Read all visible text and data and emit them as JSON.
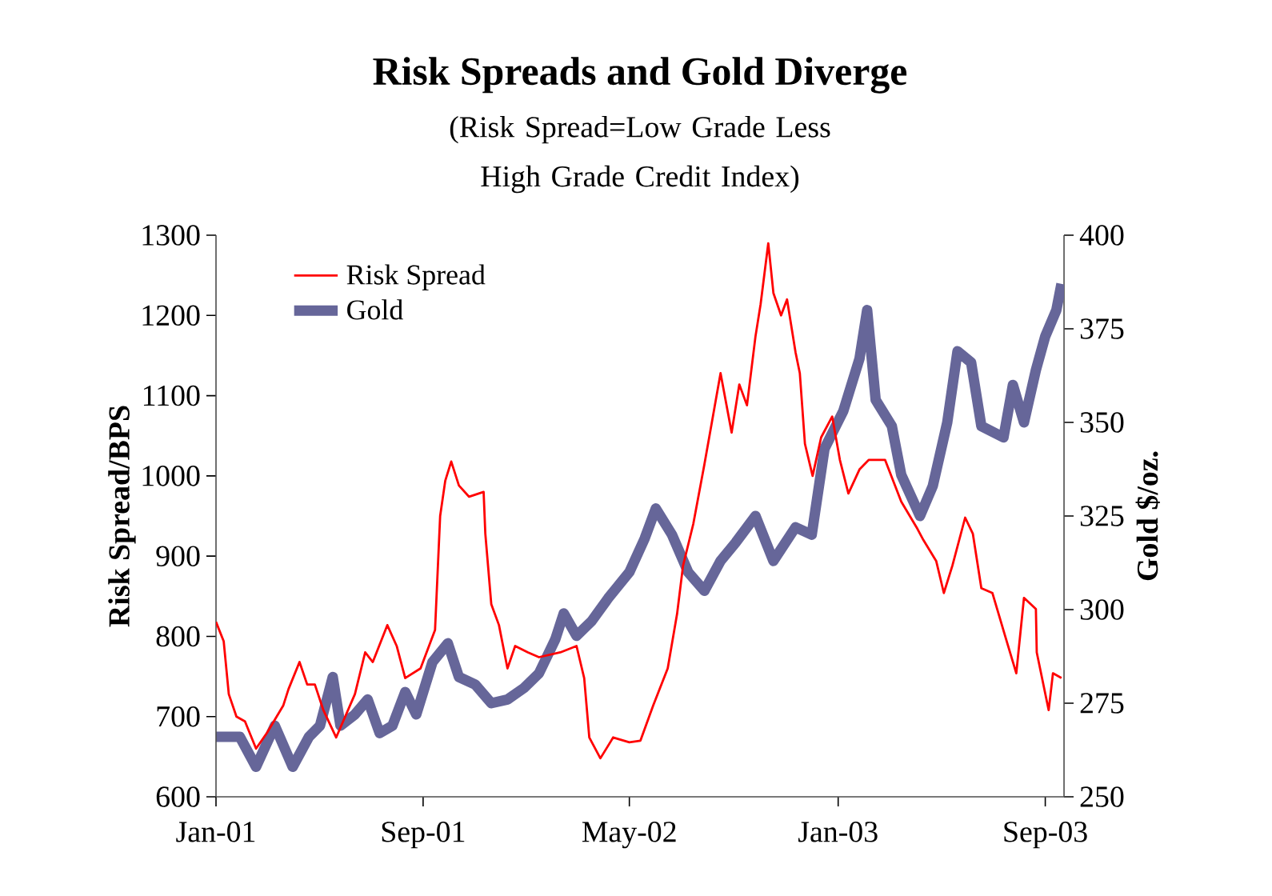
{
  "chart_data": {
    "type": "line",
    "title": "Risk Spreads and Gold Diverge",
    "subtitle": "(Risk Spread=Low Grade Less High Grade Credit Index)",
    "ylabel": "Risk Spread/BPS",
    "y2label": "Gold $/oz.",
    "xlim": [
      "2001-01-01",
      "2003-09-23"
    ],
    "xticks": [
      {
        "value": "2001-01-01",
        "label": "Jan-01"
      },
      {
        "value": "2001-09-01",
        "label": "Sep-01"
      },
      {
        "value": "2002-05-01",
        "label": "May-02"
      },
      {
        "value": "2003-01-01",
        "label": "Jan-03"
      },
      {
        "value": "2003-09-01",
        "label": "Sep-03"
      }
    ],
    "ylim": [
      600,
      1300
    ],
    "yticks": [
      600,
      700,
      800,
      900,
      1000,
      1100,
      1200,
      1300
    ],
    "y2lim": [
      250,
      400
    ],
    "y2ticks": [
      250,
      275,
      300,
      325,
      350,
      375,
      400
    ],
    "legend": "top left",
    "grid": false,
    "marker": "none",
    "line_style": "solid",
    "series": [
      {
        "name": "Risk Spread",
        "color": "#ff0000",
        "x": [
          "2001-01-01",
          "2001-01-10",
          "2001-01-16",
          "2001-01-25",
          "2001-02-04",
          "2001-02-17",
          "2001-03-02",
          "2001-03-21",
          "2001-03-27",
          "2001-04-09",
          "2001-04-18",
          "2001-04-27",
          "2001-05-07",
          "2001-05-22",
          "2001-06-13",
          "2001-06-25",
          "2001-07-04",
          "2001-07-21",
          "2001-08-01",
          "2001-08-11",
          "2001-08-29",
          "2001-09-15",
          "2001-09-21",
          "2001-09-27",
          "2001-10-04",
          "2001-10-13",
          "2001-10-25",
          "2001-11-11",
          "2001-11-13",
          "2001-11-20",
          "2001-11-29",
          "2001-12-09",
          "2001-12-18",
          "2002-01-02",
          "2002-01-15",
          "2002-02-09",
          "2002-02-28",
          "2002-03-09",
          "2002-03-15",
          "2002-03-28",
          "2002-04-12",
          "2002-05-01",
          "2002-05-14",
          "2002-05-29",
          "2002-06-15",
          "2002-06-26",
          "2002-07-03",
          "2002-07-15",
          "2002-07-28",
          "2002-08-06",
          "2002-08-16",
          "2002-08-29",
          "2002-09-07",
          "2002-09-16",
          "2002-09-26",
          "2002-10-02",
          "2002-10-11",
          "2002-10-17",
          "2002-10-26",
          "2002-11-02",
          "2002-11-12",
          "2002-11-17",
          "2002-11-23",
          "2002-12-02",
          "2002-12-12",
          "2002-12-25",
          "2003-01-03",
          "2003-01-13",
          "2003-01-26",
          "2003-02-06",
          "2003-02-25",
          "2003-03-16",
          "2003-04-04",
          "2003-04-11",
          "2003-04-26",
          "2003-05-05",
          "2003-05-15",
          "2003-05-30",
          "2003-06-08",
          "2003-06-18",
          "2003-07-01",
          "2003-07-16",
          "2003-07-29",
          "2003-08-07",
          "2003-08-21",
          "2003-08-22",
          "2003-09-05",
          "2003-09-10",
          "2003-09-20"
        ],
        "values": [
          818,
          794,
          728,
          700,
          694,
          660,
          680,
          714,
          734,
          768,
          740,
          740,
          708,
          674,
          728,
          780,
          768,
          814,
          788,
          748,
          760,
          808,
          950,
          994,
          1018,
          988,
          974,
          980,
          928,
          840,
          814,
          760,
          788,
          780,
          774,
          780,
          788,
          748,
          674,
          648,
          674,
          668,
          670,
          714,
          760,
          828,
          888,
          940,
          1014,
          1068,
          1128,
          1054,
          1114,
          1088,
          1174,
          1214,
          1290,
          1228,
          1200,
          1220,
          1154,
          1128,
          1040,
          1000,
          1048,
          1074,
          1020,
          978,
          1008,
          1020,
          1020,
          968,
          934,
          920,
          894,
          854,
          888,
          948,
          928,
          860,
          854,
          800,
          754,
          848,
          834,
          780,
          708,
          754,
          748
        ]
      },
      {
        "name": "Gold",
        "color": "#666699",
        "axis": "y2",
        "x": [
          "2001-01-01",
          "2001-01-29",
          "2001-02-17",
          "2001-03-11",
          "2001-04-01",
          "2001-04-20",
          "2001-05-03",
          "2001-05-18",
          "2001-05-27",
          "2001-06-13",
          "2001-06-28",
          "2001-07-12",
          "2001-07-27",
          "2001-08-11",
          "2001-08-24",
          "2001-09-12",
          "2001-09-30",
          "2001-10-13",
          "2001-11-01",
          "2001-11-20",
          "2001-12-09",
          "2001-12-28",
          "2002-01-15",
          "2002-02-03",
          "2002-02-13",
          "2002-02-28",
          "2002-03-18",
          "2002-04-06",
          "2002-05-01",
          "2002-05-19",
          "2002-06-01",
          "2002-06-20",
          "2002-07-09",
          "2002-07-28",
          "2002-08-16",
          "2002-09-03",
          "2002-09-26",
          "2002-10-17",
          "2002-11-12",
          "2002-12-01",
          "2002-12-16",
          "2003-01-07",
          "2003-01-26",
          "2003-02-04",
          "2003-02-14",
          "2003-03-05",
          "2003-03-16",
          "2003-04-07",
          "2003-04-22",
          "2003-05-09",
          "2003-05-21",
          "2003-06-06",
          "2003-06-18",
          "2003-07-14",
          "2003-07-25",
          "2003-08-07",
          "2003-08-21",
          "2003-09-01",
          "2003-09-14",
          "2003-09-20"
        ],
        "values": [
          266,
          266,
          258,
          269,
          258,
          266,
          269,
          282,
          269,
          272,
          276,
          267,
          269,
          278,
          272,
          286,
          291,
          282,
          280,
          275,
          276,
          279,
          283,
          292,
          299,
          293,
          297,
          303,
          310,
          319,
          327,
          320,
          310,
          305,
          313,
          318,
          325,
          313,
          322,
          320,
          343,
          353,
          367,
          380,
          356,
          349,
          336,
          325,
          333,
          350,
          369,
          366,
          349,
          346,
          360,
          350,
          364,
          373,
          380,
          387
        ]
      }
    ]
  }
}
